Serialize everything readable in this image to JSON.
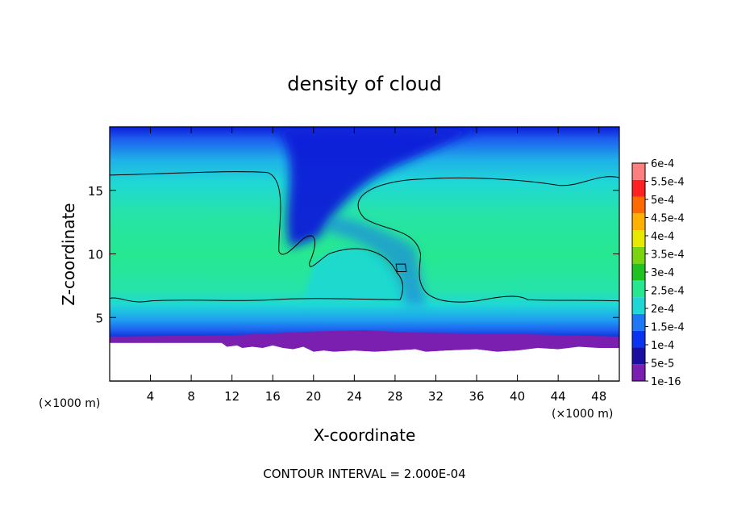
{
  "chart_data": {
    "type": "heatmap",
    "title": "density of cloud",
    "xlabel": "X-coordinate",
    "ylabel": "Z-coordinate",
    "x_unit_left": "(×1000 m)",
    "x_unit_right": "(×1000 m)",
    "footer": "CONTOUR INTERVAL = 2.000E-04",
    "xlim": [
      0,
      50
    ],
    "ylim": [
      0,
      20
    ],
    "x_ticks": [
      4,
      8,
      12,
      16,
      20,
      24,
      28,
      32,
      36,
      40,
      44,
      48
    ],
    "x_tick_labels": [
      "4",
      "8",
      "12",
      "16",
      "20",
      "24",
      "28",
      "32",
      "36",
      "40",
      "44",
      "48"
    ],
    "y_ticks": [
      5,
      10,
      15
    ],
    "y_tick_labels": [
      "5",
      "10",
      "15"
    ],
    "colorbar": {
      "labels": [
        "1e-16",
        "5e-5",
        "1e-4",
        "1.5e-4",
        "2e-4",
        "2.5e-4",
        "3e-4",
        "3.5e-4",
        "4e-4",
        "4.5e-4",
        "5e-4",
        "5.5e-4",
        "6e-4"
      ],
      "colors": [
        "#7a1fb0",
        "#1a0fa0",
        "#0a35f0",
        "#1e78f5",
        "#1fd8d6",
        "#26e890",
        "#1fc21f",
        "#7ad40f",
        "#e8e800",
        "#ffb000",
        "#ff6a00",
        "#ff2222",
        "#ff7f7f"
      ]
    },
    "field_colors": {
      "ground": "#ffffff",
      "surface_layer": "#7a1fb0",
      "deep_blue": "#0a1ed8",
      "mid_blue": "#1e70f0",
      "cyan": "#1fd8d6",
      "green_core": "#26e890"
    },
    "cloud_base_z": 3.0,
    "contour_2e-4": {
      "left_top_z": 16.2,
      "right_top_z": 16.0,
      "left_base_z": 6.5,
      "right_base_z": 6.3,
      "gap_x": [
        16.5,
        30
      ]
    }
  }
}
